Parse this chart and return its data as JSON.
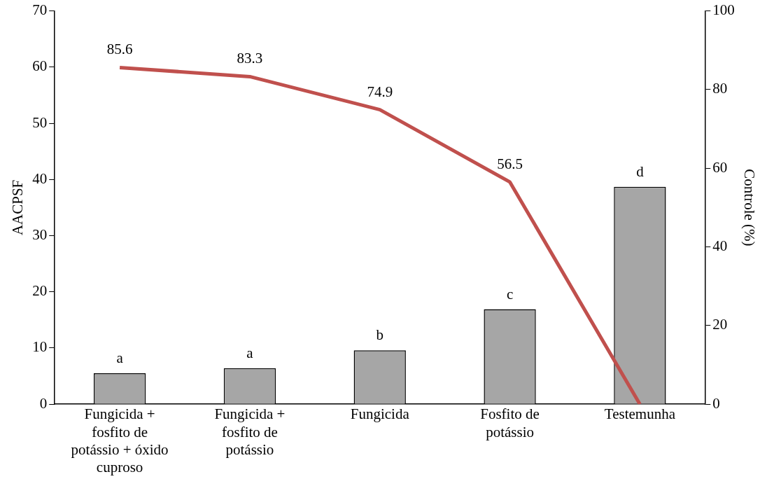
{
  "chart_data": {
    "type": "bar",
    "ylabel": "AACPSF",
    "y2label": "Controle (%)",
    "categories": [
      "Fungicida + fosfito de potássio + óxido cuproso",
      "Fungicida + fosfito de potássio",
      "Fungicida",
      "Fosfito de potássio",
      "Testemunha"
    ],
    "series": [
      {
        "color": "#a6a6a6",
        "values": [
          5.5,
          6.4,
          9.6,
          16.9,
          38.7
        ]
      },
      {
        "type": "line",
        "axis": "y2",
        "color": "#c0504d",
        "values": [
          85.6,
          83.3,
          74.9,
          56.5,
          0
        ],
        "value_labels": [
          "85.6",
          "83.3",
          "74.9",
          "56.5",
          null
        ]
      }
    ],
    "ylim": [
      0,
      70
    ],
    "yticks": [
      0,
      10,
      20,
      30,
      40,
      50,
      60,
      70
    ],
    "y2lim": [
      0,
      100
    ],
    "y2ticks": [
      0,
      20,
      40,
      60,
      80,
      100
    ],
    "annotations": [
      {
        "text": "a",
        "x": "Fungicida + fosfito de potássio + óxido cuproso",
        "y": 5.5
      },
      {
        "text": "a",
        "x": "Fungicida + fosfito de potássio",
        "y": 6.4
      },
      {
        "text": "b",
        "x": "Fungicida",
        "y": 9.6
      },
      {
        "text": "c",
        "x": "Fosfito de potássio",
        "y": 16.9
      },
      {
        "text": "d",
        "x": "Testemunha",
        "y": 38.7
      }
    ],
    "grid": false,
    "legend": false,
    "marker": "none"
  }
}
